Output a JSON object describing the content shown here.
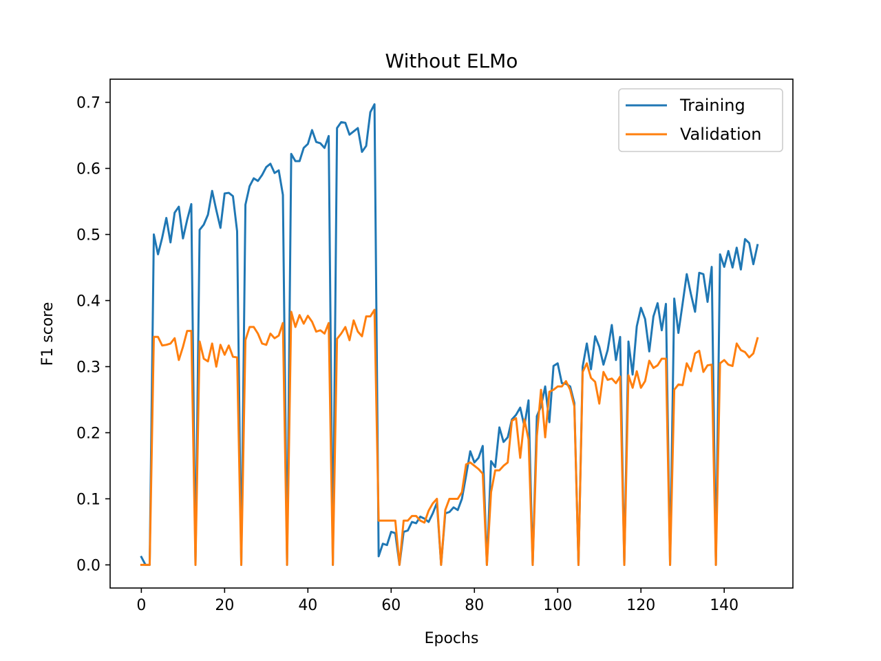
{
  "chart_data": {
    "type": "line",
    "title": "Without ELMo",
    "xlabel": "Epochs",
    "ylabel": "F1 score",
    "xlim": [
      -7.5,
      156.5
    ],
    "ylim": [
      -0.035,
      0.735
    ],
    "xticks": [
      0,
      20,
      40,
      60,
      80,
      100,
      120,
      140
    ],
    "yticks": [
      0.0,
      0.1,
      0.2,
      0.3,
      0.4,
      0.5,
      0.6,
      0.7
    ],
    "ytick_labels": [
      "0.0",
      "0.1",
      "0.2",
      "0.3",
      "0.4",
      "0.5",
      "0.6",
      "0.7"
    ],
    "grid": false,
    "legend_position": "upper-right",
    "series": [
      {
        "name": "Training",
        "color": "#1f77b4",
        "values": [
          0.012,
          0.0,
          0.0,
          0.5,
          0.47,
          0.495,
          0.525,
          0.488,
          0.533,
          0.542,
          0.494,
          0.522,
          0.546,
          0.0,
          0.507,
          0.515,
          0.53,
          0.566,
          0.537,
          0.51,
          0.562,
          0.563,
          0.558,
          0.505,
          0.0,
          0.545,
          0.573,
          0.585,
          0.581,
          0.59,
          0.602,
          0.607,
          0.593,
          0.597,
          0.56,
          0.0,
          0.622,
          0.611,
          0.611,
          0.631,
          0.637,
          0.658,
          0.64,
          0.638,
          0.631,
          0.649,
          0.0,
          0.661,
          0.67,
          0.669,
          0.651,
          0.656,
          0.661,
          0.625,
          0.634,
          0.685,
          0.697,
          0.013,
          0.032,
          0.03,
          0.05,
          0.048,
          0.0,
          0.05,
          0.052,
          0.065,
          0.063,
          0.073,
          0.07,
          0.065,
          0.078,
          0.094,
          0.0,
          0.078,
          0.08,
          0.087,
          0.083,
          0.1,
          0.135,
          0.172,
          0.155,
          0.162,
          0.18,
          0.0,
          0.157,
          0.148,
          0.208,
          0.186,
          0.193,
          0.22,
          0.227,
          0.238,
          0.21,
          0.249,
          0.0,
          0.225,
          0.24,
          0.27,
          0.216,
          0.301,
          0.305,
          0.275,
          0.274,
          0.27,
          0.245,
          0.0,
          0.3,
          0.335,
          0.296,
          0.346,
          0.33,
          0.303,
          0.325,
          0.363,
          0.31,
          0.345,
          0.0,
          0.338,
          0.288,
          0.361,
          0.389,
          0.372,
          0.323,
          0.376,
          0.396,
          0.355,
          0.395,
          0.0,
          0.403,
          0.351,
          0.395,
          0.44,
          0.41,
          0.383,
          0.442,
          0.44,
          0.398,
          0.451,
          0.0,
          0.47,
          0.451,
          0.475,
          0.45,
          0.48,
          0.447,
          0.493,
          0.487,
          0.455,
          0.484
        ]
      },
      {
        "name": "Validation",
        "color": "#ff7f0e",
        "values": [
          0.0,
          0.0,
          0.0,
          0.345,
          0.345,
          0.332,
          0.333,
          0.335,
          0.343,
          0.31,
          0.33,
          0.354,
          0.354,
          0.0,
          0.338,
          0.312,
          0.308,
          0.335,
          0.3,
          0.333,
          0.318,
          0.332,
          0.315,
          0.314,
          0.0,
          0.34,
          0.36,
          0.36,
          0.35,
          0.335,
          0.333,
          0.35,
          0.343,
          0.347,
          0.366,
          0.0,
          0.383,
          0.36,
          0.378,
          0.365,
          0.377,
          0.368,
          0.353,
          0.355,
          0.35,
          0.366,
          0.0,
          0.342,
          0.35,
          0.36,
          0.34,
          0.37,
          0.353,
          0.346,
          0.376,
          0.376,
          0.386,
          0.067,
          0.067,
          0.067,
          0.067,
          0.067,
          0.0,
          0.067,
          0.067,
          0.074,
          0.074,
          0.067,
          0.064,
          0.082,
          0.093,
          0.1,
          0.0,
          0.083,
          0.1,
          0.1,
          0.1,
          0.11,
          0.152,
          0.155,
          0.15,
          0.145,
          0.138,
          0.0,
          0.11,
          0.143,
          0.143,
          0.15,
          0.155,
          0.218,
          0.222,
          0.162,
          0.22,
          0.19,
          0.0,
          0.195,
          0.265,
          0.193,
          0.262,
          0.265,
          0.27,
          0.27,
          0.278,
          0.265,
          0.24,
          0.0,
          0.292,
          0.305,
          0.283,
          0.277,
          0.244,
          0.292,
          0.28,
          0.282,
          0.275,
          0.285,
          0.0,
          0.287,
          0.268,
          0.293,
          0.268,
          0.278,
          0.309,
          0.298,
          0.302,
          0.312,
          0.312,
          0.0,
          0.265,
          0.273,
          0.272,
          0.305,
          0.293,
          0.32,
          0.324,
          0.292,
          0.302,
          0.303,
          0.0,
          0.305,
          0.31,
          0.303,
          0.301,
          0.335,
          0.325,
          0.322,
          0.314,
          0.32,
          0.343
        ]
      }
    ]
  }
}
